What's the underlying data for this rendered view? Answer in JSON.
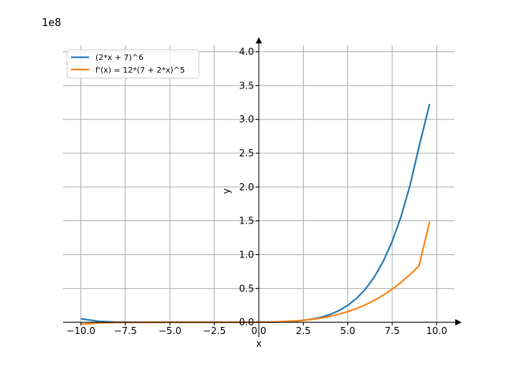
{
  "chart_data": {
    "type": "line",
    "title": "",
    "xlabel": "x",
    "ylabel": "y",
    "offset_text": "1e8",
    "xlim": [
      -11.0,
      11.0
    ],
    "ylim": [
      0.0,
      4.1
    ],
    "y_scale_multiplier": 100000000,
    "x_ticks": [
      -10.0,
      -7.5,
      -5.0,
      -2.5,
      0.0,
      2.5,
      5.0,
      7.5,
      10.0
    ],
    "x_tick_labels": [
      "−10.0",
      "−7.5",
      "−5.0",
      "−2.5",
      "0.0",
      "2.5",
      "5.0",
      "7.5",
      "10.0"
    ],
    "y_ticks": [
      0.0,
      0.5,
      1.0,
      1.5,
      2.0,
      2.5,
      3.0,
      3.5,
      4.0
    ],
    "y_tick_labels": [
      "0.0",
      "0.5",
      "1.0",
      "1.5",
      "2.0",
      "2.5",
      "3.0",
      "3.5",
      "4.0"
    ],
    "grid": true,
    "legend_position": "top-left",
    "series": [
      {
        "name": "(2*x + 7)^6",
        "color": "#1f77b4",
        "x": [
          -10.0,
          -9.0,
          -8.0,
          -7.0,
          -6.0,
          -5.0,
          -4.0,
          -3.5,
          -3.0,
          -2.0,
          -1.0,
          0.0,
          1.0,
          2.0,
          2.5,
          3.0,
          3.5,
          4.0,
          4.5,
          5.0,
          5.5,
          6.0,
          6.5,
          7.0,
          7.5,
          8.0,
          8.5,
          9.0,
          9.6
        ],
        "y": [
          0.0531441,
          0.0148036,
          0.0035187,
          0.0006433,
          7.81e-05,
          4.7e-06,
          1e-07,
          0.0,
          0.0,
          7.3e-06,
          0.0001563,
          0.0011765,
          0.0053144,
          0.0177156,
          0.0297184,
          0.048189,
          0.0756989,
          0.1156926,
          0.1721946,
          0.25,
          0.3547856,
          0.4932718,
          0.6734058,
          0.9045531,
          1.1979063,
          1.5662051,
          2.0243566,
          2.589805,
          3.227
        ]
      },
      {
        "name": "f'(x) = 12*(7 + 2*x)^5",
        "color": "#ff7f0e",
        "x": [
          -10.0,
          -9.0,
          -8.0,
          -7.0,
          -6.0,
          -5.0,
          -4.0,
          -3.5,
          -3.0,
          -2.0,
          -1.0,
          0.0,
          1.0,
          2.0,
          2.5,
          3.0,
          3.5,
          4.0,
          4.5,
          5.0,
          5.5,
          6.0,
          6.5,
          7.0,
          7.5,
          8.0,
          8.5,
          9.0,
          9.6
        ],
        "y": [
          -0.0283435,
          -0.0088822,
          -0.0023458,
          -0.0004595,
          -5.67e-05,
          -2.9e-06,
          -1e-07,
          0.0,
          0.0,
          2.92e-05,
          0.000375,
          0.0020168,
          0.0070859,
          0.0193262,
          0.03,
          0.0444821,
          0.0635664,
          0.0882166,
          0.1193938,
          0.1578256,
          0.2045286,
          0.2603488,
          0.3260922,
          0.4025818,
          0.4906736,
          0.5911992,
          0.7050126,
          0.8329875,
          1.487
        ]
      }
    ]
  }
}
